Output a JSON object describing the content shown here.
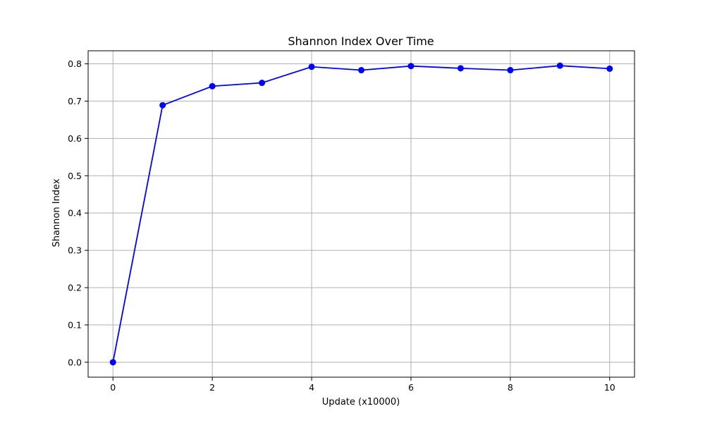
{
  "chart_data": {
    "type": "line",
    "title": "Shannon Index Over Time",
    "xlabel": "Update (x10000)",
    "ylabel": "Shannon Index",
    "xlim": [
      -0.5,
      10.5
    ],
    "ylim": [
      -0.04,
      0.835
    ],
    "xticks": [
      0,
      2,
      4,
      6,
      8,
      10
    ],
    "yticks": [
      0.0,
      0.1,
      0.2,
      0.3,
      0.4,
      0.5,
      0.6,
      0.7,
      0.8
    ],
    "grid": true,
    "series": [
      {
        "color": "#0000ff",
        "marker": "circle",
        "x": [
          0,
          1,
          2,
          3,
          4,
          5,
          6,
          7,
          8,
          9,
          10
        ],
        "y": [
          0.0,
          0.689,
          0.74,
          0.749,
          0.792,
          0.783,
          0.794,
          0.788,
          0.783,
          0.795,
          0.787
        ]
      }
    ]
  }
}
